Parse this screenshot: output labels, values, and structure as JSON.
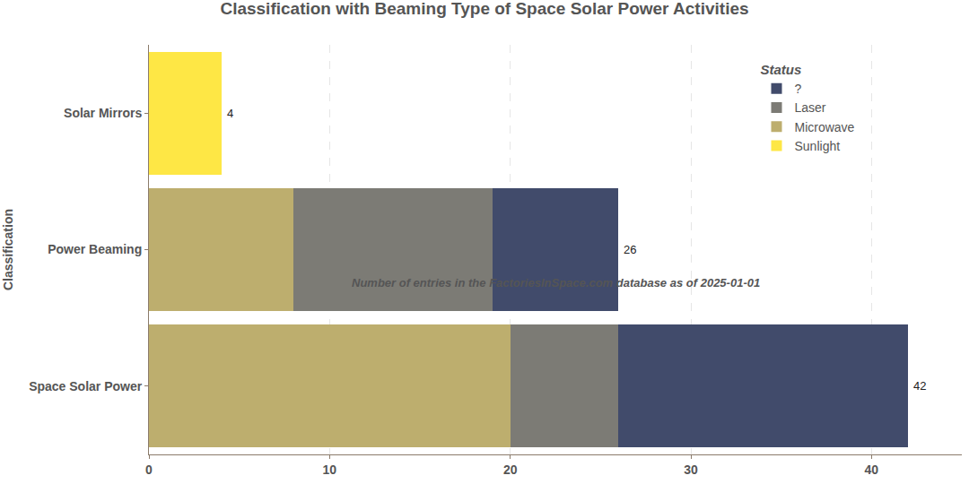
{
  "chart_data": {
    "type": "bar",
    "title": "Classification with Beaming Type of Space Solar Power Activities",
    "subtitle": "Number of entries in the FactoriesInSpace.com database as of 2025-01-01",
    "ylabel": "Classification",
    "legend_title": "Status",
    "categories": [
      "Space Solar Power",
      "Power Beaming",
      "Solar Mirrors"
    ],
    "series": [
      {
        "name": "?",
        "color": "#414b6b",
        "values": [
          16,
          7,
          null
        ]
      },
      {
        "name": "Laser",
        "color": "#7c7b75",
        "values": [
          6,
          11,
          null
        ]
      },
      {
        "name": "Microwave",
        "color": "#bdae6e",
        "values": [
          20,
          8,
          null
        ]
      },
      {
        "name": "Sunlight",
        "color": "#fee745",
        "values": [
          null,
          null,
          4
        ]
      }
    ],
    "totals": [
      42,
      26,
      4
    ],
    "xlim": [
      0,
      45
    ],
    "xticks": [
      0,
      10,
      20,
      30,
      40
    ],
    "orientation": "horizontal",
    "stacked": true,
    "grid": true,
    "legend": "top right"
  }
}
